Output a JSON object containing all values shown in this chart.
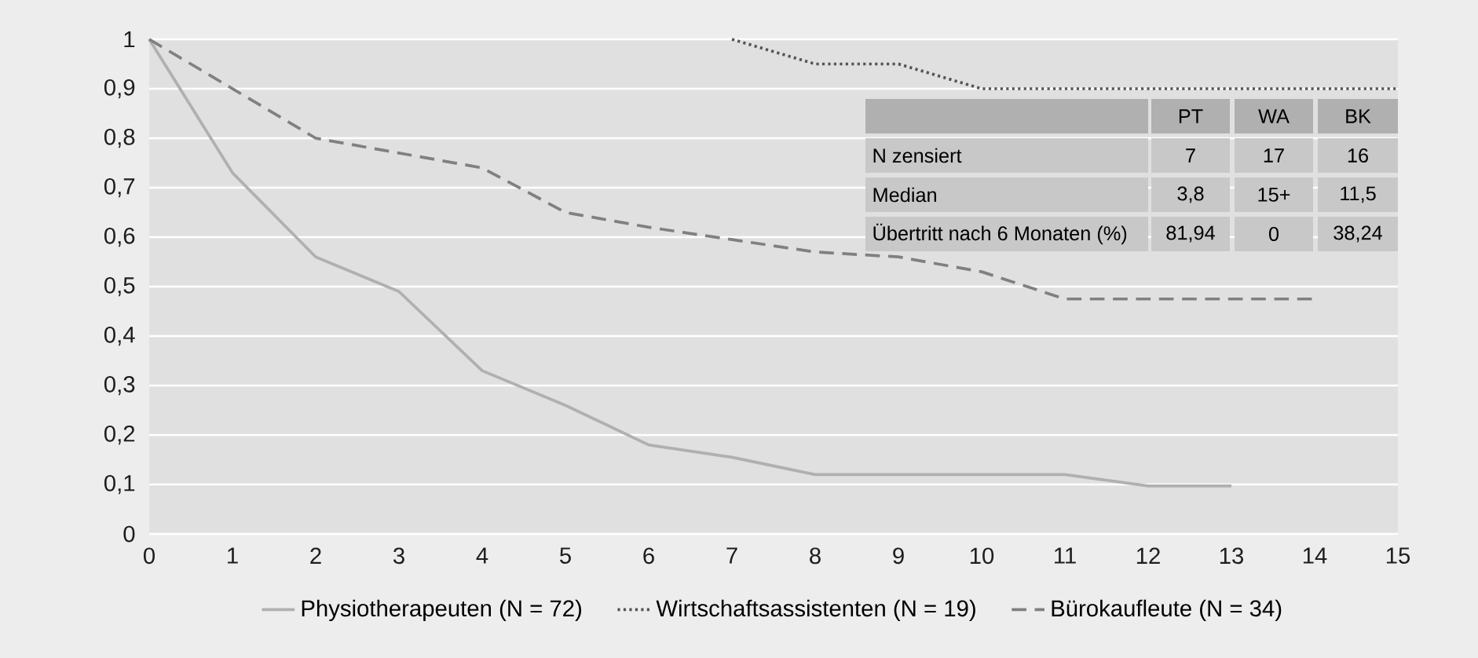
{
  "chart_data": {
    "type": "line",
    "series": [
      {
        "name": "Physiotherapeuten (N = 72)",
        "color": "#b0b0b0",
        "line_style": "solid",
        "x": [
          0,
          1,
          2,
          3,
          4,
          5,
          6,
          7,
          8,
          9,
          10,
          11,
          12,
          13
        ],
        "values": [
          1,
          0.73,
          0.56,
          0.49,
          0.33,
          0.26,
          0.18,
          0.155,
          0.12,
          0.12,
          0.12,
          0.12,
          0.097,
          0.097
        ]
      },
      {
        "name": "Wirtschaftsassistenten (N = 19)",
        "color": "#555555",
        "line_style": "dotted",
        "x": [
          7,
          8,
          9,
          10,
          11,
          12,
          13,
          14,
          15
        ],
        "values": [
          1,
          0.95,
          0.95,
          0.9,
          0.9,
          0.9,
          0.9,
          0.9,
          0.9
        ]
      },
      {
        "name": "Bürokaufleute (N = 34)",
        "color": "#808080",
        "line_style": "dashed",
        "x": [
          0,
          1,
          2,
          3,
          4,
          5,
          6,
          7,
          8,
          9,
          10,
          11,
          12,
          13,
          14
        ],
        "values": [
          1,
          0.9,
          0.8,
          0.77,
          0.74,
          0.65,
          0.62,
          0.595,
          0.57,
          0.56,
          0.53,
          0.475,
          0.475,
          0.475,
          0.475
        ]
      }
    ],
    "xlim": [
      0,
      15
    ],
    "xticks": [
      0,
      1,
      2,
      3,
      4,
      5,
      6,
      7,
      8,
      9,
      10,
      11,
      12,
      13,
      14,
      15
    ],
    "ylim": [
      0,
      1
    ],
    "yticks": [
      0,
      {
        "value": 0.1,
        "label": "0,1"
      },
      {
        "value": 0.2,
        "label": "0,2"
      },
      {
        "value": 0.3,
        "label": "0,3"
      },
      {
        "value": 0.4,
        "label": "0,4"
      },
      {
        "value": 0.5,
        "label": "0,5"
      },
      {
        "value": 0.6,
        "label": "0,6"
      },
      {
        "value": 0.7,
        "label": "0,7"
      },
      {
        "value": 0.8,
        "label": "0,8"
      },
      {
        "value": 0.9,
        "label": "0,9"
      },
      1
    ],
    "grid": "y",
    "legend": "bottom",
    "annotations": [
      "PT",
      "WA",
      "BK",
      "N zensiert",
      "7",
      "17",
      "16",
      "Median",
      "3,8",
      "15+",
      "11,5",
      "Übertritt nach 6 Monaten (%)",
      "81,94",
      "0",
      "38,24"
    ]
  }
}
